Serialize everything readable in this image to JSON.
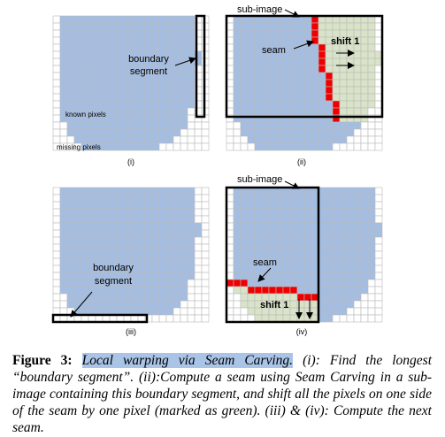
{
  "figure": {
    "panels": [
      {
        "label": "(i)",
        "annotations": [
          "boundary",
          "segment",
          "known pixels",
          "missing pixels"
        ]
      },
      {
        "label": "(ii)",
        "annotations": [
          "sub-image",
          "seam",
          "shift 1"
        ]
      },
      {
        "label": "(iii)",
        "annotations": [
          "boundary",
          "segment"
        ]
      },
      {
        "label": "(iv)",
        "annotations": [
          "sub-image",
          "seam",
          "shift 1"
        ]
      }
    ],
    "caption": {
      "label": "Figure 3:",
      "highlight": "Local warping via Seam Carving.",
      "text": "(i): Find the longest “boundary segment”. (ii):Compute a seam using Seam Carving in a sub-image containing this boundary segment, and shift all the pixels on one side of the seam by one pixel (marked as green). (iii) & (iv): Compute the next seam."
    }
  }
}
